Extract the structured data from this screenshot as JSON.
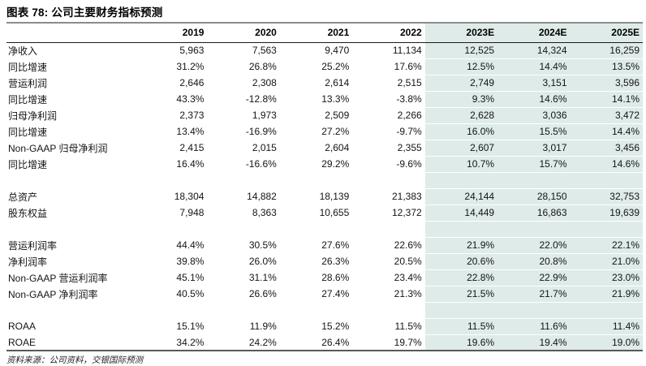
{
  "title": "图表 78: 公司主要财务指标预测",
  "footer": {
    "source": "资料来源：公司资料，交银国际预测"
  },
  "table": {
    "highlight_color": "#deebe9",
    "highlight_from_index": 4,
    "columns": [
      "",
      "2019",
      "2020",
      "2021",
      "2022",
      "2023E",
      "2024E",
      "2025E"
    ],
    "rows": [
      {
        "label": "净收入",
        "values": [
          "5,963",
          "7,563",
          "9,470",
          "11,134",
          "12,525",
          "14,324",
          "16,259"
        ]
      },
      {
        "label": "同比增速",
        "values": [
          "31.2%",
          "26.8%",
          "25.2%",
          "17.6%",
          "12.5%",
          "14.4%",
          "13.5%"
        ]
      },
      {
        "label": "营运利润",
        "values": [
          "2,646",
          "2,308",
          "2,614",
          "2,515",
          "2,749",
          "3,151",
          "3,596"
        ]
      },
      {
        "label": "同比增速",
        "values": [
          "43.3%",
          "-12.8%",
          "13.3%",
          "-3.8%",
          "9.3%",
          "14.6%",
          "14.1%"
        ]
      },
      {
        "label": "归母净利润",
        "values": [
          "2,373",
          "1,973",
          "2,509",
          "2,266",
          "2,628",
          "3,036",
          "3,472"
        ]
      },
      {
        "label": "同比增速",
        "values": [
          "13.4%",
          "-16.9%",
          "27.2%",
          "-9.7%",
          "16.0%",
          "15.5%",
          "14.4%"
        ]
      },
      {
        "label": "Non-GAAP 归母净利润",
        "values": [
          "2,415",
          "2,015",
          "2,604",
          "2,355",
          "2,607",
          "3,017",
          "3,456"
        ]
      },
      {
        "label": "同比增速",
        "values": [
          "16.4%",
          "-16.6%",
          "29.2%",
          "-9.6%",
          "10.7%",
          "15.7%",
          "14.6%"
        ]
      },
      {
        "label": "",
        "values": [
          "",
          "",
          "",
          "",
          "",
          "",
          ""
        ]
      },
      {
        "label": "总资产",
        "values": [
          "18,304",
          "14,882",
          "18,139",
          "21,383",
          "24,144",
          "28,150",
          "32,753"
        ]
      },
      {
        "label": "股东权益",
        "values": [
          "7,948",
          "8,363",
          "10,655",
          "12,372",
          "14,449",
          "16,863",
          "19,639"
        ]
      },
      {
        "label": "",
        "values": [
          "",
          "",
          "",
          "",
          "",
          "",
          ""
        ]
      },
      {
        "label": "营运利润率",
        "values": [
          "44.4%",
          "30.5%",
          "27.6%",
          "22.6%",
          "21.9%",
          "22.0%",
          "22.1%"
        ]
      },
      {
        "label": "净利润率",
        "values": [
          "39.8%",
          "26.0%",
          "26.3%",
          "20.5%",
          "20.6%",
          "20.8%",
          "21.0%"
        ]
      },
      {
        "label": "Non-GAAP 营运利润率",
        "values": [
          "45.1%",
          "31.1%",
          "28.6%",
          "23.4%",
          "22.8%",
          "22.9%",
          "23.0%"
        ]
      },
      {
        "label": "Non-GAAP 净利润率",
        "values": [
          "40.5%",
          "26.6%",
          "27.4%",
          "21.3%",
          "21.5%",
          "21.7%",
          "21.9%"
        ]
      },
      {
        "label": "",
        "values": [
          "",
          "",
          "",
          "",
          "",
          "",
          ""
        ]
      },
      {
        "label": "ROAA",
        "values": [
          "15.1%",
          "11.9%",
          "15.2%",
          "11.5%",
          "11.5%",
          "11.6%",
          "11.4%"
        ]
      },
      {
        "label": "ROAE",
        "values": [
          "34.2%",
          "24.2%",
          "26.4%",
          "19.7%",
          "19.6%",
          "19.4%",
          "19.0%"
        ]
      }
    ]
  }
}
